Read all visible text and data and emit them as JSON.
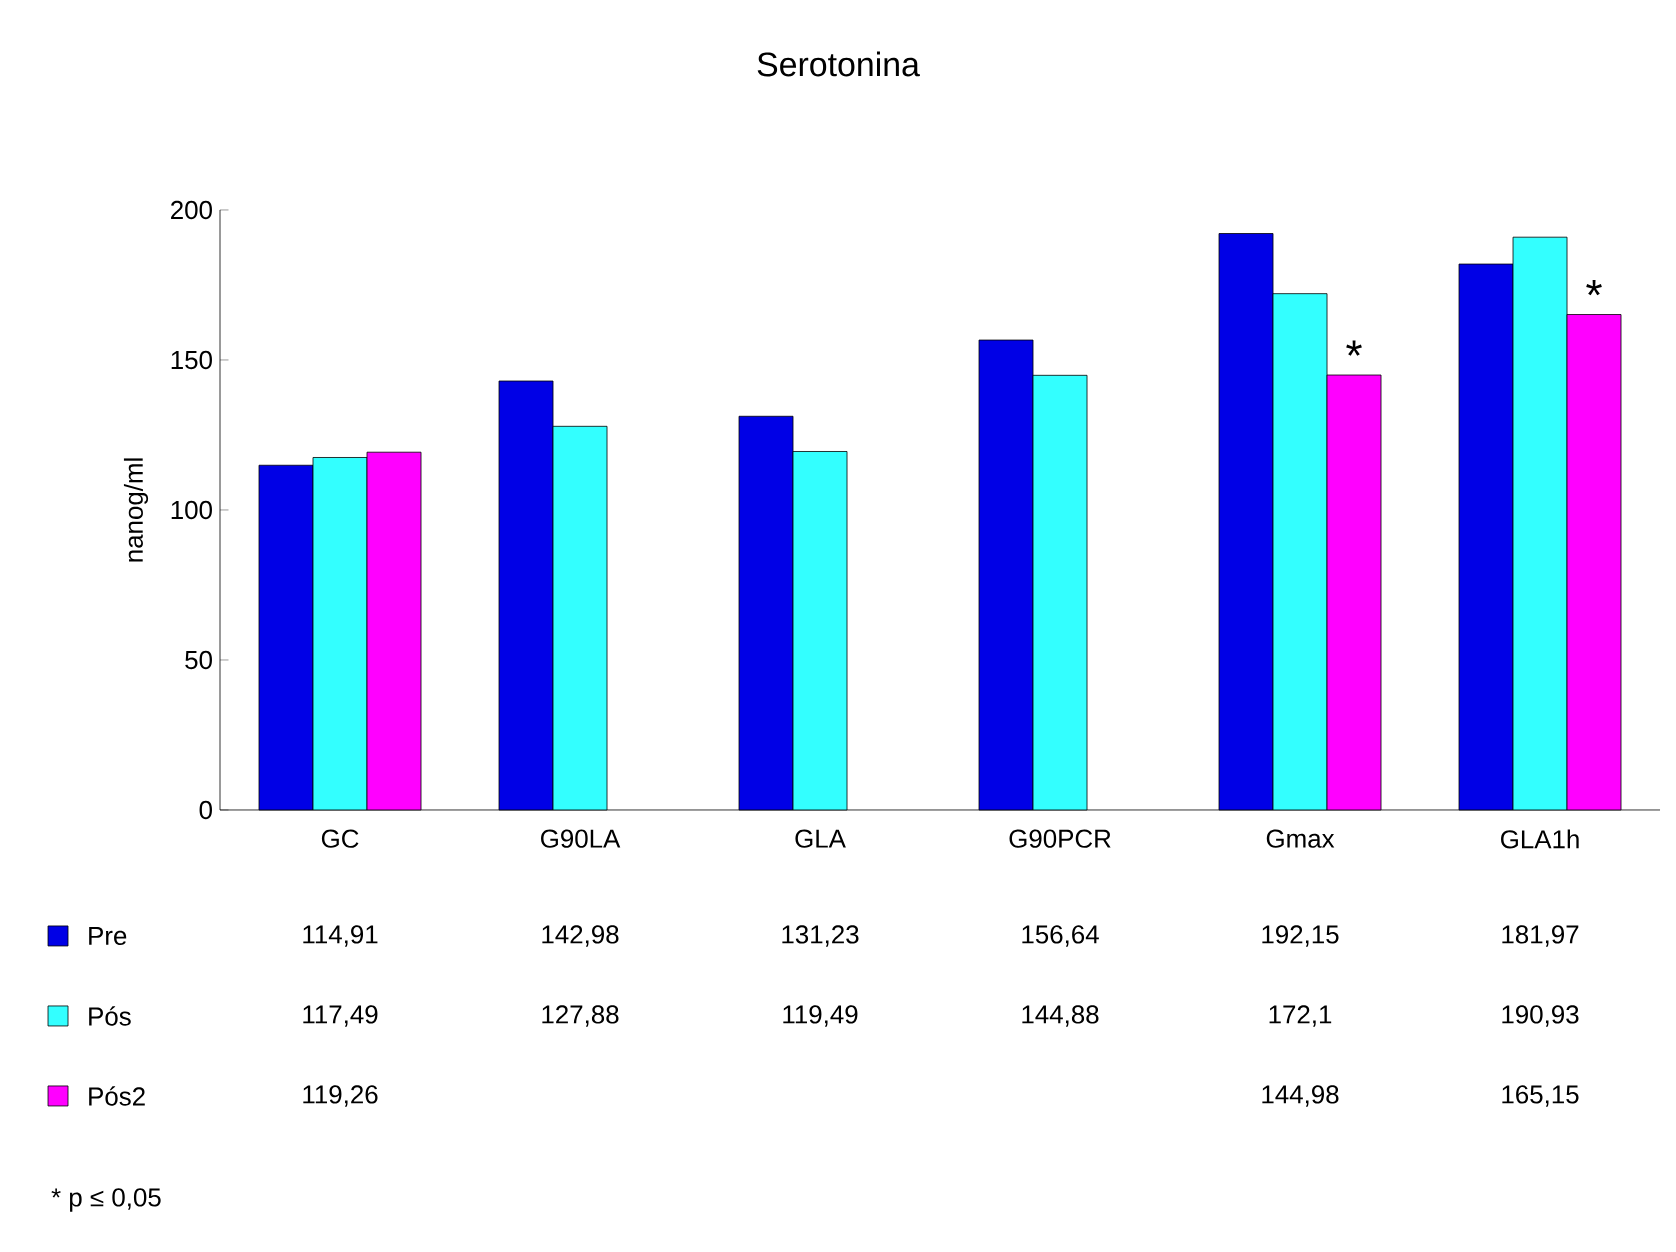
{
  "chart_data": {
    "type": "bar",
    "title": "Serotonina",
    "ylabel": "nanog/ml",
    "categories": [
      "GC",
      "G90LA",
      "GLA",
      "G90PCR",
      "Gmax",
      "GLA1h"
    ],
    "series": [
      {
        "name": "Pre",
        "color": "#0000e6",
        "values": [
          114.91,
          142.98,
          131.23,
          156.64,
          192.15,
          181.97
        ],
        "value_labels": [
          "114,91",
          "142,98",
          "131,23",
          "156,64",
          "192,15",
          "181,97"
        ]
      },
      {
        "name": "Pós",
        "color": "#33ffff",
        "values": [
          117.49,
          127.88,
          119.49,
          144.88,
          172.1,
          190.93
        ],
        "value_labels": [
          "117,49",
          "127,88",
          "119,49",
          "144,88",
          "172,1",
          "190,93"
        ]
      },
      {
        "name": "Pós2",
        "color": "#ff00ff",
        "values": [
          119.26,
          null,
          null,
          null,
          144.98,
          165.15
        ],
        "value_labels": [
          "119,26",
          null,
          null,
          null,
          "144,98",
          "165,15"
        ]
      }
    ],
    "ylim": [
      0,
      200
    ],
    "yticks": [
      0,
      50,
      100,
      150,
      200
    ],
    "grid": false,
    "legend": "bottom",
    "annotations": [
      "*",
      "*",
      "* p ≤ 0,05"
    ]
  }
}
